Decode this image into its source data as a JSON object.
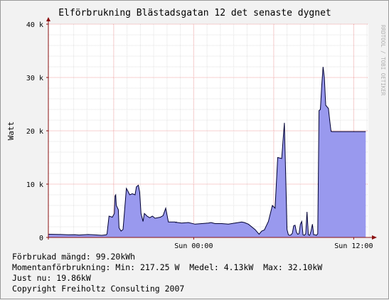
{
  "chart_data": {
    "type": "area",
    "title": "Elförbrukning Blästadsgatan 12 det senaste dygnet",
    "ylabel": "Watt",
    "watermark": "RRDTOOL / TOBI OETIKER",
    "ylim": [
      0,
      40000
    ],
    "xlim": [
      0,
      24
    ],
    "y_ticks": [
      {
        "value": 0,
        "label": "0"
      },
      {
        "value": 10000,
        "label": "10 k"
      },
      {
        "value": 20000,
        "label": "20 k"
      },
      {
        "value": 30000,
        "label": "30 k"
      },
      {
        "value": 40000,
        "label": "40 k"
      }
    ],
    "x_ticks": [
      {
        "value": 10.9,
        "label": "Sun 00:00"
      },
      {
        "value": 22.9,
        "label": "Sun 12:00"
      }
    ],
    "grid": true,
    "colors": {
      "area": "#9999ee",
      "line": "#000033",
      "major_grid": "#f0a0a0",
      "minor_grid": "#e0e0e0",
      "axis": "#8b1010",
      "plot_bg": "#ffffff",
      "canvas_bg": "#f2f2f2"
    },
    "series": [
      {
        "x": [
          0.0,
          1.0,
          1.5,
          2.0,
          2.3,
          2.6,
          3.0,
          3.5,
          4.0,
          4.35,
          4.4,
          4.55,
          4.8,
          4.95,
          5.0,
          5.05,
          5.1,
          5.25,
          5.3,
          5.45,
          5.6,
          5.85,
          5.9,
          6.1,
          6.3,
          6.5,
          6.6,
          6.75,
          6.85,
          6.95,
          7.1,
          7.2,
          7.4,
          7.6,
          7.8,
          8.0,
          8.2,
          8.4,
          8.6,
          8.8,
          9.0,
          9.5,
          9.55,
          9.6,
          9.65,
          9.7,
          10.0,
          10.5,
          11.0,
          11.5,
          12.0,
          12.2,
          12.5,
          13.0,
          13.5,
          14.0,
          14.5,
          14.7,
          15.0,
          15.5,
          15.8,
          16.0,
          16.2,
          16.5,
          16.8,
          17.0,
          17.2,
          17.5,
          17.7,
          17.9,
          18.0,
          18.1,
          18.2,
          18.3,
          18.4,
          18.5,
          18.6,
          18.7,
          18.8,
          18.9,
          19.0,
          19.1,
          19.2,
          19.3,
          19.4,
          19.5,
          19.6,
          19.7,
          19.8,
          19.9,
          20.0,
          20.1,
          20.2,
          20.3,
          20.4,
          20.5,
          20.6,
          20.7,
          20.8,
          20.9,
          21.0,
          21.1,
          21.2,
          21.3,
          21.4,
          21.5,
          21.6,
          21.7,
          21.8,
          21.9,
          22.0,
          22.1,
          22.2,
          22.3,
          22.4,
          22.5,
          22.6,
          22.7,
          22.8,
          22.9,
          23.0,
          23.1,
          23.2,
          23.3,
          23.5,
          23.6,
          23.7,
          23.8
        ],
        "values": [
          600,
          550,
          500,
          520,
          450,
          500,
          550,
          480,
          400,
          500,
          700,
          4000,
          3800,
          4500,
          7800,
          8000,
          6000,
          5200,
          1800,
          1200,
          1500,
          9200,
          9000,
          8000,
          8200,
          8000,
          9500,
          9800,
          8500,
          4500,
          3000,
          4500,
          4000,
          3700,
          4000,
          3600,
          3700,
          3800,
          4100,
          5500,
          2900,
          2900,
          2800,
          2900,
          2800,
          2800,
          2700,
          2800,
          2500,
          2600,
          2700,
          2800,
          2600,
          2600,
          2500,
          2700,
          2900,
          2800,
          2500,
          1500,
          600,
          1200,
          1400,
          3000,
          6000,
          5500,
          15000,
          14800,
          21500,
          1500,
          500,
          400,
          500,
          800,
          2200,
          2300,
          1000,
          600,
          700,
          2500,
          3000,
          500,
          400,
          700,
          4800,
          500,
          400,
          1200,
          2500,
          500,
          500,
          400,
          700,
          23800,
          24000,
          28500,
          32000,
          30000,
          24800,
          24500,
          24200,
          22000,
          19900,
          19860,
          19860,
          19860,
          19860,
          19860,
          19860,
          19860,
          19860,
          19860,
          19860,
          19860,
          19860,
          19860,
          19860,
          19860,
          19860,
          19860,
          19860,
          19860,
          19860,
          19860,
          19860,
          19860,
          19860,
          19860
        ]
      }
    ]
  },
  "footer": {
    "line1": "Förbrukad mängd: 99.20kWh",
    "line2": "Momentanförbrukning: Min: 217.25 W  Medel: 4.13kW  Max: 32.10kW",
    "line3": "Just nu: 19.86kW",
    "line4": "Copyright Freiholtz Consulting 2007"
  }
}
